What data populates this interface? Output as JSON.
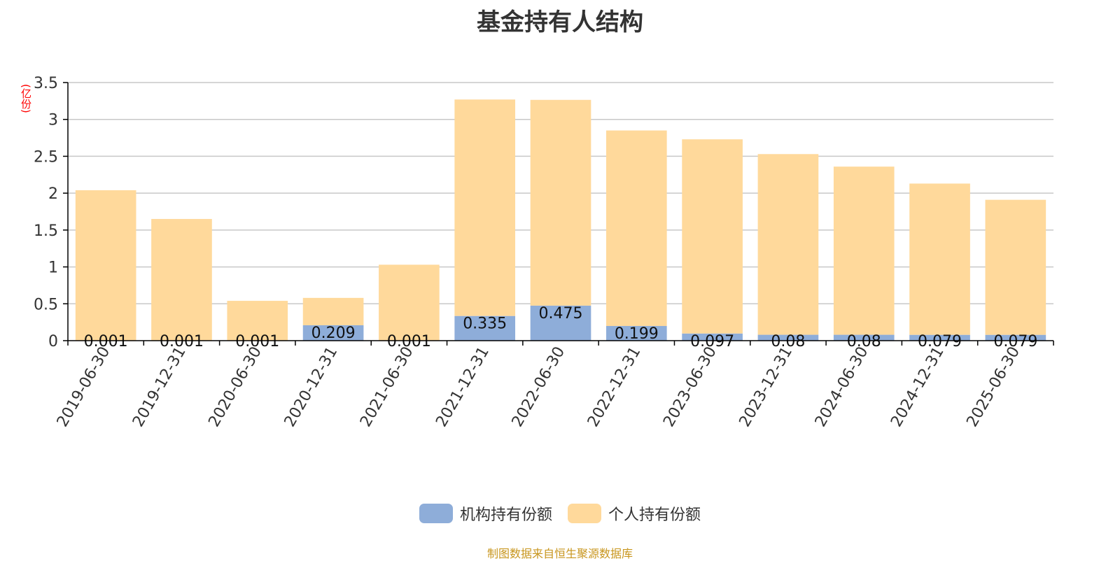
{
  "title": "基金持有人结构",
  "unit_label": "(亿份)",
  "source_note": "制图数据来自恒生聚源数据库",
  "chart_data": {
    "type": "bar",
    "stacked": true,
    "categories": [
      "2019-06-30",
      "2019-12-31",
      "2020-06-30",
      "2020-12-31",
      "2021-06-30",
      "2021-12-31",
      "2022-06-30",
      "2022-12-31",
      "2023-06-30",
      "2023-12-31",
      "2024-06-30",
      "2024-12-31",
      "2025-06-30"
    ],
    "series": [
      {
        "name": "机构持有份额",
        "color": "#8eadd9",
        "values": [
          0.001,
          0.001,
          0.001,
          0.209,
          0.001,
          0.335,
          0.475,
          0.199,
          0.097,
          0.08,
          0.08,
          0.079,
          0.079
        ],
        "labels": [
          "0.001",
          "0.001",
          "0.001",
          "0.209",
          "0.001",
          "0.335",
          "0.475",
          "0.199",
          "0.097",
          "0.08",
          "0.08",
          "0.079",
          "0.079"
        ]
      },
      {
        "name": "个人持有份额",
        "color": "#ffd99b",
        "values": [
          2.039,
          1.649,
          0.539,
          0.371,
          1.029,
          2.935,
          2.79,
          2.651,
          2.633,
          2.45,
          2.28,
          2.051,
          1.831
        ]
      }
    ],
    "ylim": [
      0,
      3.5
    ],
    "yticks": [
      0,
      0.5,
      1,
      1.5,
      2,
      2.5,
      3,
      3.5
    ],
    "ytick_labels": [
      "0",
      "0.5",
      "1",
      "1.5",
      "2",
      "2.5",
      "3",
      "3.5"
    ],
    "grid": true,
    "legend_position": "bottom"
  }
}
